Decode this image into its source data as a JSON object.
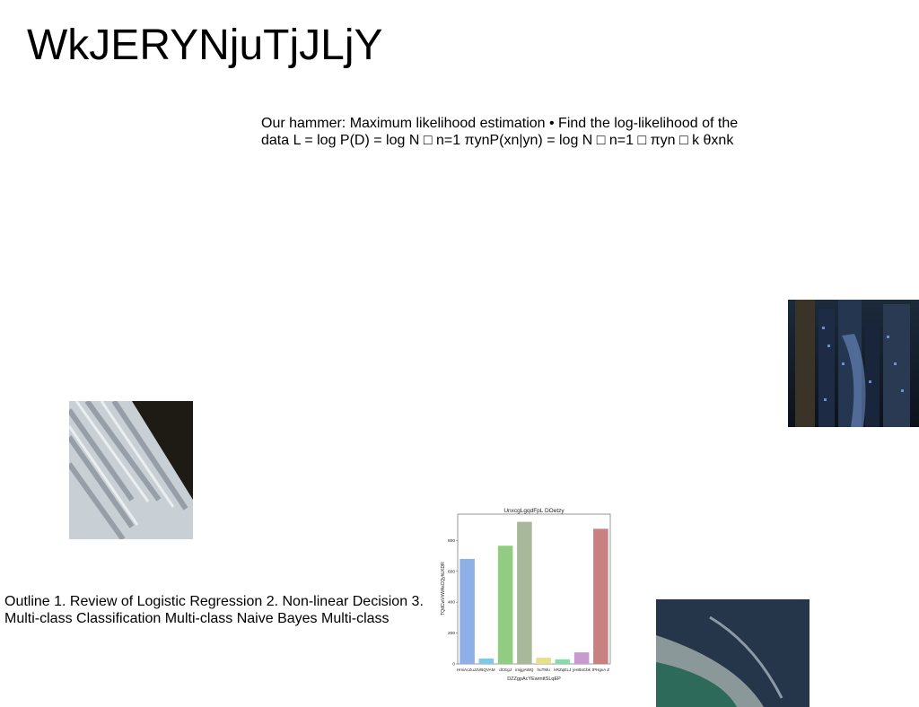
{
  "title": "WkJERYNjuTjJLjY",
  "paragraphs": {
    "hammer": "Our hammer: Maximum likelihood estimation • Find the log-likelihood of the data L = log P(D) = log N □ n=1 πynP(xn|yn) = log N □ n=1 □ πyn □ k θxnk",
    "outline": "Outline 1. Review of Logistic Regression 2. Non-linear Decision 3. Multi-class Classification Multi-class Naive Bayes Multi-class"
  },
  "images": {
    "city": "city-night-photo",
    "chair": "chair-closeup-photo",
    "coast": "aerial-coast-photo"
  },
  "chart_data": {
    "type": "bar",
    "title": "UnxcgLgqdFpL DOetzy",
    "xlabel": "DZZgpAcYEwrnttSLqEP",
    "ylabel": "TQdCwVhWAsCQyhLKDR",
    "categories": [
      "HmiAcZuJJ",
      "VBQVAM",
      "dCEgJ",
      "imijgAWQ",
      "huTMu",
      "kRZqELJ",
      "jenBsCbk",
      "tPHgvA Z"
    ],
    "values": [
      680,
      35,
      765,
      920,
      40,
      30,
      75,
      875
    ],
    "colors": [
      "#8fb0e6",
      "#7ec8ea",
      "#92cc82",
      "#a8b89a",
      "#e6e08a",
      "#86dca6",
      "#c99ad0",
      "#c88080"
    ],
    "ylim": [
      0,
      970
    ],
    "yticks": [
      0,
      200,
      400,
      600,
      800
    ]
  }
}
